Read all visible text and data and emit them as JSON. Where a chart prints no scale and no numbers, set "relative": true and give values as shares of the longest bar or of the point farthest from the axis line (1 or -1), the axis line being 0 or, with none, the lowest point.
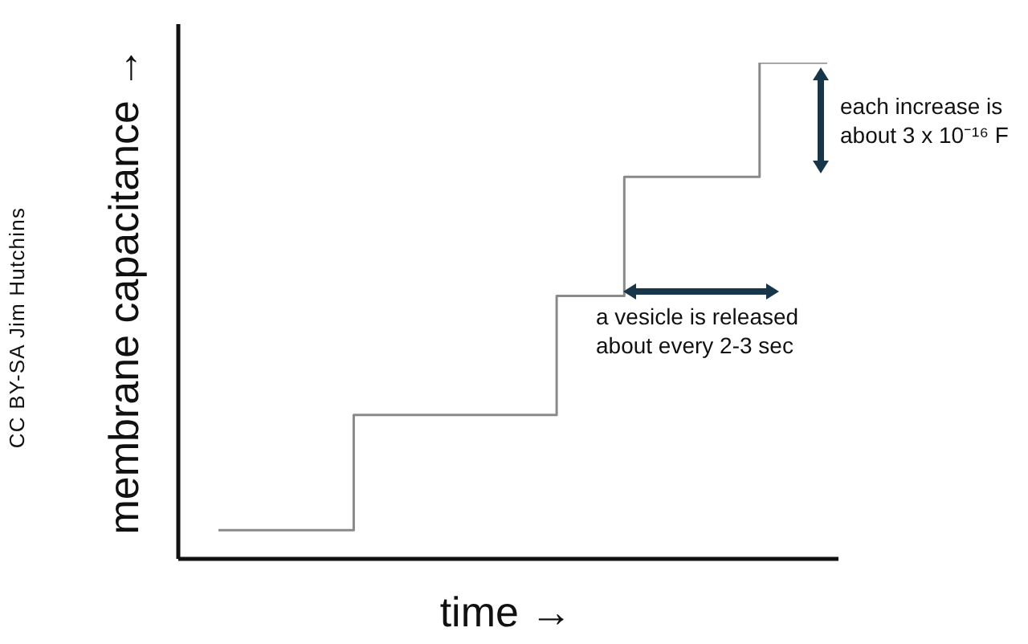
{
  "chart_data": {
    "type": "step",
    "relative": true,
    "categories": [
      null,
      null,
      null,
      null,
      null,
      null,
      null,
      null,
      null,
      null
    ],
    "values": [
      0.058,
      0.058,
      0.29,
      0.29,
      0.29,
      0.53,
      0.77,
      0.77,
      1,
      1
    ],
    "color": "#8a8a8a",
    "marker": "none",
    "line_style": "solid",
    "xlabel": "time →",
    "ylabel": "membrane capacitance →",
    "annotations": [
      "each increase is about 3 x 10⁻¹⁶ F",
      "a vesicle is released about every 2-3 sec",
      "CC BY-SA Jim Hutchins"
    ]
  }
}
